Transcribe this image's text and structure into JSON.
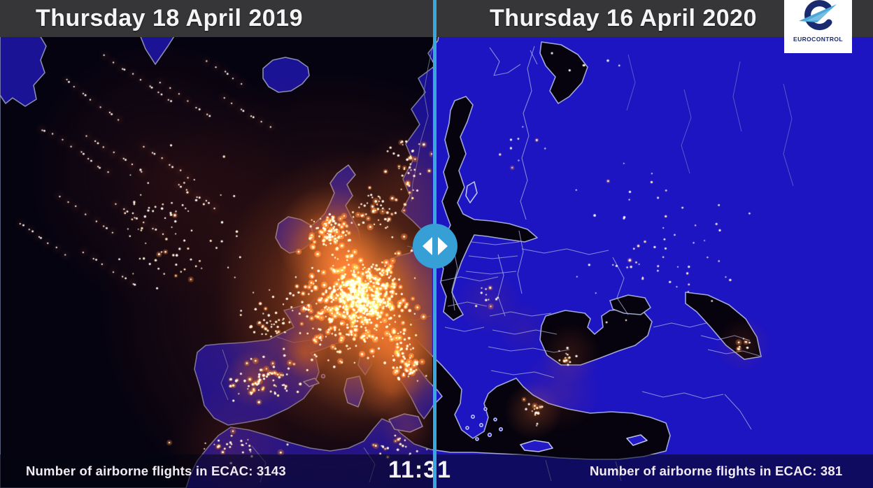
{
  "left_panel": {
    "date": "Thursday 18 April 2019",
    "flights_label": "Number of airborne flights in ECAC: 3143",
    "flights": 3143
  },
  "right_panel": {
    "date": "Thursday 16 April 2020",
    "flights_label": "Number of airborne flights in ECAC: 381",
    "flights": 381
  },
  "clock": "11:31",
  "logo": {
    "wordmark": "EUROCONTROL"
  },
  "icons": {
    "slider_handle": "arrows-left-right",
    "logo_emblem": "eurocontrol-bird-e"
  },
  "colors": {
    "accent_blue": "#38a8dc",
    "land_blue": "#1e15c2",
    "sea_dark": "#06030e",
    "coast_light": "#b9c2ea",
    "glow_orange": "#ff8c3a",
    "dot_white": "#fff6e2",
    "titlebar_gray": "#363639",
    "logo_navy": "#1a2a6e",
    "logo_light_blue": "#49a8d8"
  }
}
